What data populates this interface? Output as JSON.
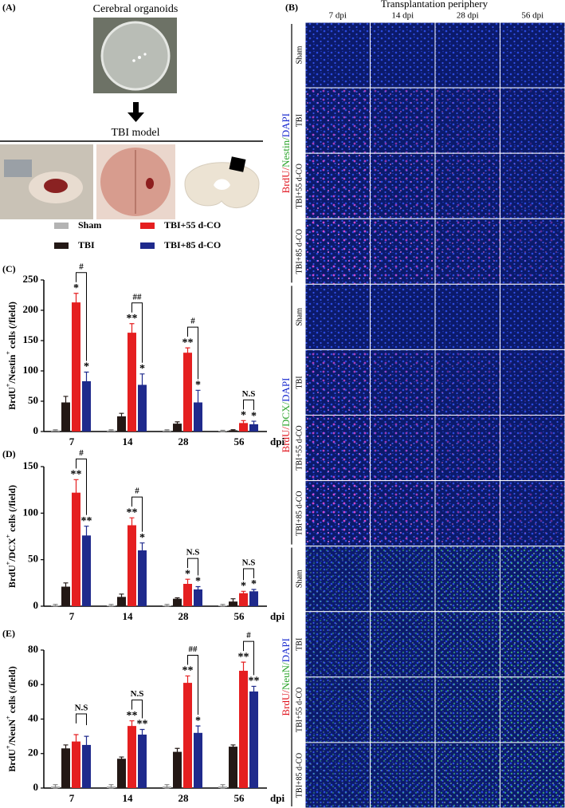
{
  "panel_a": {
    "label": "(A)",
    "title": "Cerebral organoids",
    "subtitle": "TBI model"
  },
  "panel_b": {
    "label": "(B)",
    "title": "Transplantation periphery",
    "columns": [
      "7 dpi",
      "14 dpi",
      "28 dpi",
      "56 dpi"
    ],
    "groups": [
      {
        "stain_parts": [
          "BrdU/",
          "Nestin/",
          "DAPI"
        ],
        "stain_colors": [
          "#e0141e",
          "#2fa52f",
          "#1b2ccf"
        ],
        "rows": [
          "Sham",
          "TBI",
          "TBI+55 d-CO",
          "TBI+85 d-CO"
        ]
      },
      {
        "stain_parts": [
          "BrdU/",
          "DCX/",
          "DAPI"
        ],
        "stain_colors": [
          "#e0141e",
          "#2fa52f",
          "#1b2ccf"
        ],
        "rows": [
          "Sham",
          "TBI",
          "TBI+55 d-CO",
          "TBI+85 d-CO"
        ]
      },
      {
        "stain_parts": [
          "BrdU/",
          "NeuN/",
          "DAPI"
        ],
        "stain_colors": [
          "#e0141e",
          "#2fa52f",
          "#1b2ccf"
        ],
        "rows": [
          "Sham",
          "TBI",
          "TBI+55 d-CO",
          "TBI+85 d-CO"
        ]
      }
    ]
  },
  "chart_data": [
    {
      "type": "bar",
      "panel": "(C)",
      "ylabel": [
        "BrdU",
        "+",
        "/Nestin",
        "+",
        " cells (/field)"
      ],
      "xlabel": "dpi",
      "categories": [
        "7",
        "14",
        "28",
        "56"
      ],
      "ylim": [
        0,
        250
      ],
      "yticks": [
        0,
        50,
        100,
        150,
        200,
        250
      ],
      "series": [
        {
          "name": "Sham",
          "color": "#b3b3b3",
          "values": [
            2,
            2,
            2,
            1
          ],
          "errors": [
            1,
            1,
            1,
            1
          ],
          "significance": [
            null,
            null,
            null,
            null
          ]
        },
        {
          "name": "TBI",
          "color": "#231815",
          "values": [
            48,
            25,
            13,
            2
          ],
          "errors": [
            10,
            5,
            3,
            1
          ],
          "significance": [
            null,
            null,
            null,
            null
          ]
        },
        {
          "name": "TBI+55 d-CO",
          "color": "#e51f20",
          "values": [
            213,
            163,
            130,
            14
          ],
          "errors": [
            15,
            15,
            8,
            4
          ],
          "significance": [
            "*",
            "**",
            "**",
            "*"
          ]
        },
        {
          "name": "TBI+85 d-CO",
          "color": "#1f2a8c",
          "values": [
            83,
            77,
            48,
            12
          ],
          "errors": [
            15,
            18,
            20,
            5
          ],
          "significance": [
            "*",
            "*",
            "*",
            "*"
          ]
        }
      ],
      "comparison_labels": [
        "#",
        "##",
        "#",
        "N.S"
      ]
    },
    {
      "type": "bar",
      "panel": "(D)",
      "ylabel": [
        "BrdU",
        "+",
        "/DCX",
        "+",
        " cells (/field)"
      ],
      "xlabel": "dpi",
      "categories": [
        "7",
        "14",
        "28",
        "56"
      ],
      "ylim": [
        0,
        150
      ],
      "yticks": [
        0,
        50,
        100,
        150
      ],
      "series": [
        {
          "color": "#b3b3b3",
          "values": [
            1,
            1,
            1,
            1
          ],
          "errors": [
            1,
            1,
            1,
            1
          ],
          "significance": [
            null,
            null,
            null,
            null
          ]
        },
        {
          "color": "#231815",
          "values": [
            21,
            10,
            8,
            5
          ],
          "errors": [
            4,
            3,
            1,
            3
          ],
          "significance": [
            null,
            null,
            null,
            null
          ]
        },
        {
          "color": "#e51f20",
          "values": [
            122,
            87,
            24,
            14
          ],
          "errors": [
            14,
            8,
            5,
            2
          ],
          "significance": [
            "**",
            "**",
            "*",
            "*"
          ]
        },
        {
          "color": "#1f2a8c",
          "values": [
            76,
            60,
            18,
            16
          ],
          "errors": [
            10,
            8,
            3,
            2
          ],
          "significance": [
            "**",
            "*",
            "*",
            "*"
          ]
        }
      ],
      "comparison_labels": [
        "#",
        "#",
        "N.S",
        "N.S"
      ]
    },
    {
      "type": "bar",
      "panel": "(E)",
      "ylabel": [
        "BrdU",
        "+",
        "/NeuN",
        "+",
        " cells (/field)"
      ],
      "xlabel": "dpi",
      "categories": [
        "7",
        "14",
        "28",
        "56"
      ],
      "ylim": [
        0,
        80
      ],
      "yticks": [
        0,
        20,
        40,
        60,
        80
      ],
      "series": [
        {
          "color": "#b3b3b3",
          "values": [
            1,
            1,
            1,
            1
          ],
          "errors": [
            1,
            1,
            1,
            1
          ],
          "significance": [
            null,
            null,
            null,
            null
          ]
        },
        {
          "color": "#231815",
          "values": [
            23,
            17,
            21,
            24
          ],
          "errors": [
            2,
            1,
            2,
            1
          ],
          "significance": [
            null,
            null,
            null,
            null
          ]
        },
        {
          "color": "#e51f20",
          "values": [
            27,
            36,
            61,
            68
          ],
          "errors": [
            4,
            3,
            4,
            5
          ],
          "significance": [
            null,
            "**",
            "**",
            "**"
          ]
        },
        {
          "color": "#1f2a8c",
          "values": [
            25,
            31,
            32,
            56
          ],
          "errors": [
            5,
            3,
            4,
            3
          ],
          "significance": [
            null,
            "**",
            "*",
            "**"
          ]
        }
      ],
      "comparison_labels": [
        "N.S",
        "N.S",
        "##",
        "#"
      ]
    }
  ]
}
